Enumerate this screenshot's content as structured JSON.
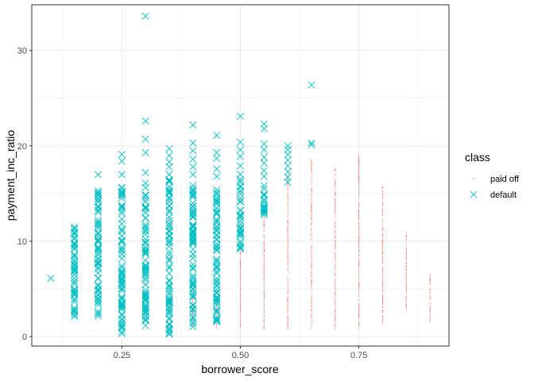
{
  "chart_data": {
    "type": "scatter",
    "title": "",
    "xlabel": "borrower_score",
    "ylabel": "payment_inc_ratio",
    "xlim": [
      0.06,
      0.94
    ],
    "ylim": [
      -1,
      34.8
    ],
    "x_ticks": [
      0.25,
      0.5,
      0.75
    ],
    "x_tick_labels": [
      "0.25",
      "0.50",
      "0.75"
    ],
    "y_ticks": [
      0,
      10,
      20,
      30
    ],
    "y_tick_labels": [
      "0",
      "10",
      "20",
      "30"
    ],
    "grid": true,
    "legend": {
      "title": "class",
      "position": "right"
    },
    "series": [
      {
        "name": "paid off",
        "marker": "dot",
        "color": "#F8766D",
        "ranges": [
          {
            "x": 0.4,
            "ymin": 1.0,
            "ymax": 5.5
          },
          {
            "x": 0.45,
            "ymin": 0.8,
            "ymax": 5.0
          },
          {
            "x": 0.5,
            "ymin": 0.8,
            "ymax": 9.5
          },
          {
            "x": 0.55,
            "ymin": 0.8,
            "ymax": 13.0
          },
          {
            "x": 0.6,
            "ymin": 0.7,
            "ymax": 17.5
          },
          {
            "x": 0.65,
            "ymin": 0.8,
            "ymax": 18.5
          },
          {
            "x": 0.7,
            "ymin": 0.8,
            "ymax": 17.8
          },
          {
            "x": 0.75,
            "ymin": 0.8,
            "ymax": 19.0
          },
          {
            "x": 0.8,
            "ymin": 1.2,
            "ymax": 16.0
          },
          {
            "x": 0.85,
            "ymin": 2.5,
            "ymax": 11.0
          },
          {
            "x": 0.9,
            "ymin": 1.5,
            "ymax": 6.5
          }
        ]
      },
      {
        "name": "default",
        "marker": "x",
        "color": "#00BFC4",
        "ranges": [
          {
            "x": 0.15,
            "ymin": 2.0,
            "ymax": 11.5
          },
          {
            "x": 0.2,
            "ymin": 1.8,
            "ymax": 15.5
          },
          {
            "x": 0.25,
            "ymin": 0.3,
            "ymax": 16.0
          },
          {
            "x": 0.3,
            "ymin": 0.9,
            "ymax": 16.5
          },
          {
            "x": 0.35,
            "ymin": 0.2,
            "ymax": 16.5
          },
          {
            "x": 0.4,
            "ymin": 1.0,
            "ymax": 16.0
          },
          {
            "x": 0.45,
            "ymin": 1.5,
            "ymax": 15.5
          },
          {
            "x": 0.5,
            "ymin": 9.0,
            "ymax": 16.5
          },
          {
            "x": 0.55,
            "ymin": 12.5,
            "ymax": 16.0
          }
        ],
        "points": [
          {
            "x": 0.1,
            "y": 6.1
          },
          {
            "x": 0.15,
            "y": 7.8
          },
          {
            "x": 0.15,
            "y": 5.8
          },
          {
            "x": 0.15,
            "y": 4.5
          },
          {
            "x": 0.15,
            "y": 3.0
          },
          {
            "x": 0.15,
            "y": 2.1
          },
          {
            "x": 0.15,
            "y": 10.9
          },
          {
            "x": 0.15,
            "y": 11.3
          },
          {
            "x": 0.2,
            "y": 17.0
          },
          {
            "x": 0.25,
            "y": 19.1
          },
          {
            "x": 0.25,
            "y": 18.4
          },
          {
            "x": 0.25,
            "y": 17.0
          },
          {
            "x": 0.3,
            "y": 33.6
          },
          {
            "x": 0.3,
            "y": 22.6
          },
          {
            "x": 0.3,
            "y": 20.7
          },
          {
            "x": 0.3,
            "y": 19.3
          },
          {
            "x": 0.3,
            "y": 17.2
          },
          {
            "x": 0.35,
            "y": 19.7
          },
          {
            "x": 0.35,
            "y": 19.0
          },
          {
            "x": 0.35,
            "y": 18.3
          },
          {
            "x": 0.35,
            "y": 17.8
          },
          {
            "x": 0.35,
            "y": 17.0
          },
          {
            "x": 0.4,
            "y": 22.2
          },
          {
            "x": 0.4,
            "y": 20.3
          },
          {
            "x": 0.4,
            "y": 19.5
          },
          {
            "x": 0.4,
            "y": 18.6
          },
          {
            "x": 0.4,
            "y": 17.8
          },
          {
            "x": 0.4,
            "y": 17.0
          },
          {
            "x": 0.45,
            "y": 21.1
          },
          {
            "x": 0.45,
            "y": 19.3
          },
          {
            "x": 0.45,
            "y": 18.7
          },
          {
            "x": 0.45,
            "y": 17.6
          },
          {
            "x": 0.45,
            "y": 16.8
          },
          {
            "x": 0.5,
            "y": 23.1
          },
          {
            "x": 0.5,
            "y": 20.4
          },
          {
            "x": 0.5,
            "y": 19.6
          },
          {
            "x": 0.5,
            "y": 18.9
          },
          {
            "x": 0.5,
            "y": 17.9
          },
          {
            "x": 0.5,
            "y": 17.0
          },
          {
            "x": 0.55,
            "y": 22.3
          },
          {
            "x": 0.55,
            "y": 21.8
          },
          {
            "x": 0.55,
            "y": 20.2
          },
          {
            "x": 0.55,
            "y": 19.6
          },
          {
            "x": 0.55,
            "y": 18.8
          },
          {
            "x": 0.55,
            "y": 18.2
          },
          {
            "x": 0.55,
            "y": 17.4
          },
          {
            "x": 0.55,
            "y": 16.8
          },
          {
            "x": 0.6,
            "y": 20.0
          },
          {
            "x": 0.6,
            "y": 19.6
          },
          {
            "x": 0.6,
            "y": 19.1
          },
          {
            "x": 0.6,
            "y": 18.5
          },
          {
            "x": 0.6,
            "y": 17.9
          },
          {
            "x": 0.6,
            "y": 17.3
          },
          {
            "x": 0.6,
            "y": 16.7
          },
          {
            "x": 0.6,
            "y": 16.2
          },
          {
            "x": 0.65,
            "y": 26.4
          },
          {
            "x": 0.65,
            "y": 20.3
          },
          {
            "x": 0.65,
            "y": 20.1
          }
        ]
      }
    ]
  }
}
